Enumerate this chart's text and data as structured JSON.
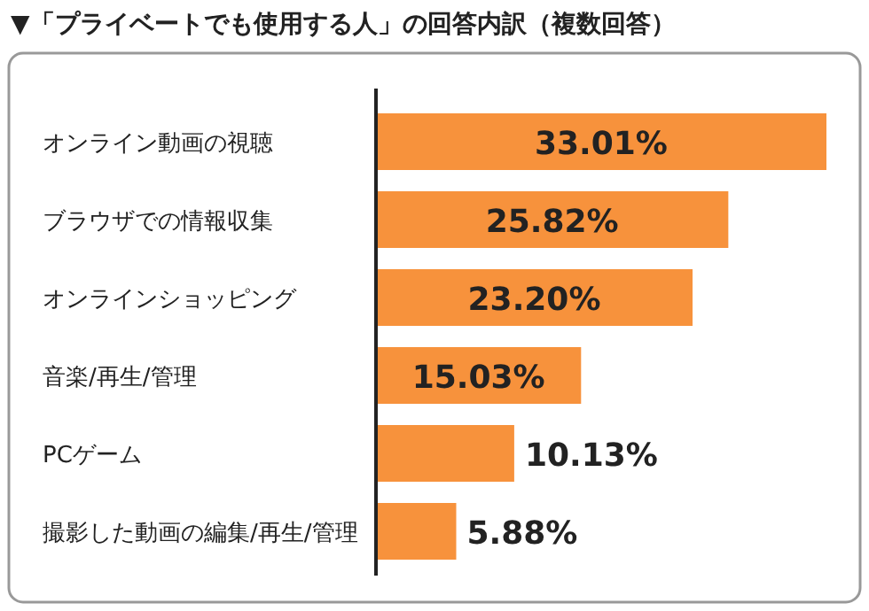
{
  "chart_data": {
    "type": "bar",
    "orientation": "horizontal",
    "title": "▼「プライベートでも使用する人」の回答内訳（複数回答）",
    "categories": [
      "オンライン動画の視聴",
      "ブラウザでの情報収集",
      "オンラインショッピング",
      "音楽/再生/管理",
      "PCゲーム",
      "撮影した動画の編集/再生/管理"
    ],
    "values": [
      33.01,
      25.82,
      23.2,
      15.03,
      10.13,
      5.88
    ],
    "value_labels": [
      "33.01%",
      "25.82%",
      "23.20%",
      "15.03%",
      "10.13%",
      "5.88%"
    ],
    "color": "#f7923c"
  }
}
